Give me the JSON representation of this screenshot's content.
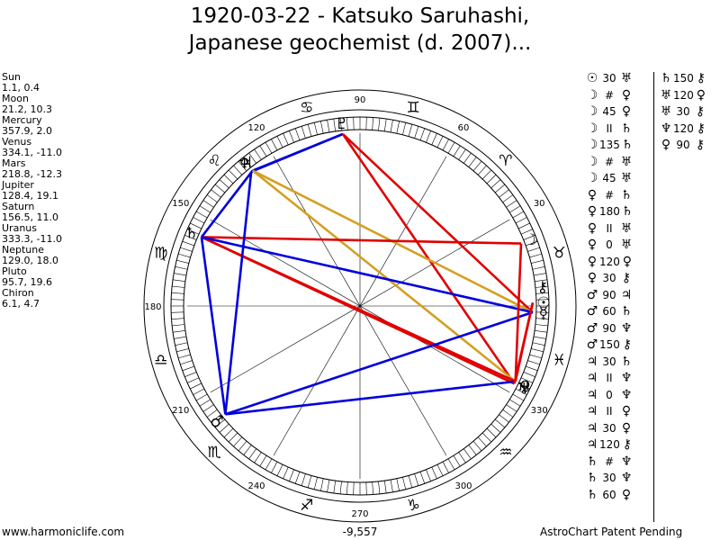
{
  "title_line1": "1920-03-22 - Katsuko Saruhashi,",
  "title_line2": "Japanese geochemist (d. 2007)...",
  "planets": [
    {
      "name": "Sun",
      "coords": "1.1, 0.4"
    },
    {
      "name": "Moon",
      "coords": "21.2, 10.3"
    },
    {
      "name": "Mercury",
      "coords": "357.9, 2.0"
    },
    {
      "name": "Venus",
      "coords": "334.1, -11.0"
    },
    {
      "name": "Mars",
      "coords": "218.8, -12.3"
    },
    {
      "name": "Jupiter",
      "coords": "128.4, 19.1"
    },
    {
      "name": "Saturn",
      "coords": "156.5, 11.0"
    },
    {
      "name": "Uranus",
      "coords": "333.3, -11.0"
    },
    {
      "name": "Neptune",
      "coords": "129.0, 18.0"
    },
    {
      "name": "Pluto",
      "coords": "95.7, 19.6"
    },
    {
      "name": "Chiron",
      "coords": "6.1, 4.7"
    }
  ],
  "degree_labels": [
    "90",
    "120",
    "60",
    "150",
    "30",
    "180",
    "210",
    "330",
    "240",
    "300",
    "270"
  ],
  "aspects_col1": [
    {
      "p1": "☉",
      "asp": "30",
      "p2": "♅"
    },
    {
      "p1": "☽",
      "asp": "#",
      "p2": "♀"
    },
    {
      "p1": "☽",
      "asp": "45",
      "p2": "♀"
    },
    {
      "p1": "☽",
      "asp": "II",
      "p2": "♄"
    },
    {
      "p1": "☽",
      "asp": "135",
      "p2": "♄"
    },
    {
      "p1": "☽",
      "asp": "#",
      "p2": "♅"
    },
    {
      "p1": "☽",
      "asp": "45",
      "p2": "♅"
    },
    {
      "p1": "♀",
      "asp": "#",
      "p2": "♄"
    },
    {
      "p1": "♀",
      "asp": "180",
      "p2": "♄"
    },
    {
      "p1": "♀",
      "asp": "II",
      "p2": "♅"
    },
    {
      "p1": "♀",
      "asp": "0",
      "p2": "♅"
    },
    {
      "p1": "♀",
      "asp": "120",
      "p2": "♀"
    },
    {
      "p1": "♀",
      "asp": "30",
      "p2": "⚷"
    },
    {
      "p1": "♂",
      "asp": "90",
      "p2": "♃"
    },
    {
      "p1": "♂",
      "asp": "60",
      "p2": "♄"
    },
    {
      "p1": "♂",
      "asp": "90",
      "p2": "♆"
    },
    {
      "p1": "♂",
      "asp": "150",
      "p2": "⚷"
    },
    {
      "p1": "♃",
      "asp": "30",
      "p2": "♄"
    },
    {
      "p1": "♃",
      "asp": "II",
      "p2": "♆"
    },
    {
      "p1": "♃",
      "asp": "0",
      "p2": "♆"
    },
    {
      "p1": "♃",
      "asp": "II",
      "p2": "♀"
    },
    {
      "p1": "♃",
      "asp": "30",
      "p2": "♀"
    },
    {
      "p1": "♃",
      "asp": "120",
      "p2": "⚷"
    },
    {
      "p1": "♄",
      "asp": "#",
      "p2": "♆"
    },
    {
      "p1": "♄",
      "asp": "30",
      "p2": "♆"
    },
    {
      "p1": "♄",
      "asp": "60",
      "p2": "♀"
    }
  ],
  "aspects_col2": [
    {
      "p1": "♄",
      "asp": "150",
      "p2": "⚷"
    },
    {
      "p1": "♅",
      "asp": "120",
      "p2": "♀"
    },
    {
      "p1": "♅",
      "asp": "30",
      "p2": "⚷"
    },
    {
      "p1": "♆",
      "asp": "120",
      "p2": "⚷"
    },
    {
      "p1": "♀",
      "asp": "90",
      "p2": "⚷"
    }
  ],
  "center_value": "-9,557",
  "footer_left": "www.harmoniclife.com",
  "footer_right": "AstroChart Patent Pending",
  "colors": {
    "red": "#e00000",
    "blue": "#0000dd",
    "gold": "#d4a020"
  }
}
